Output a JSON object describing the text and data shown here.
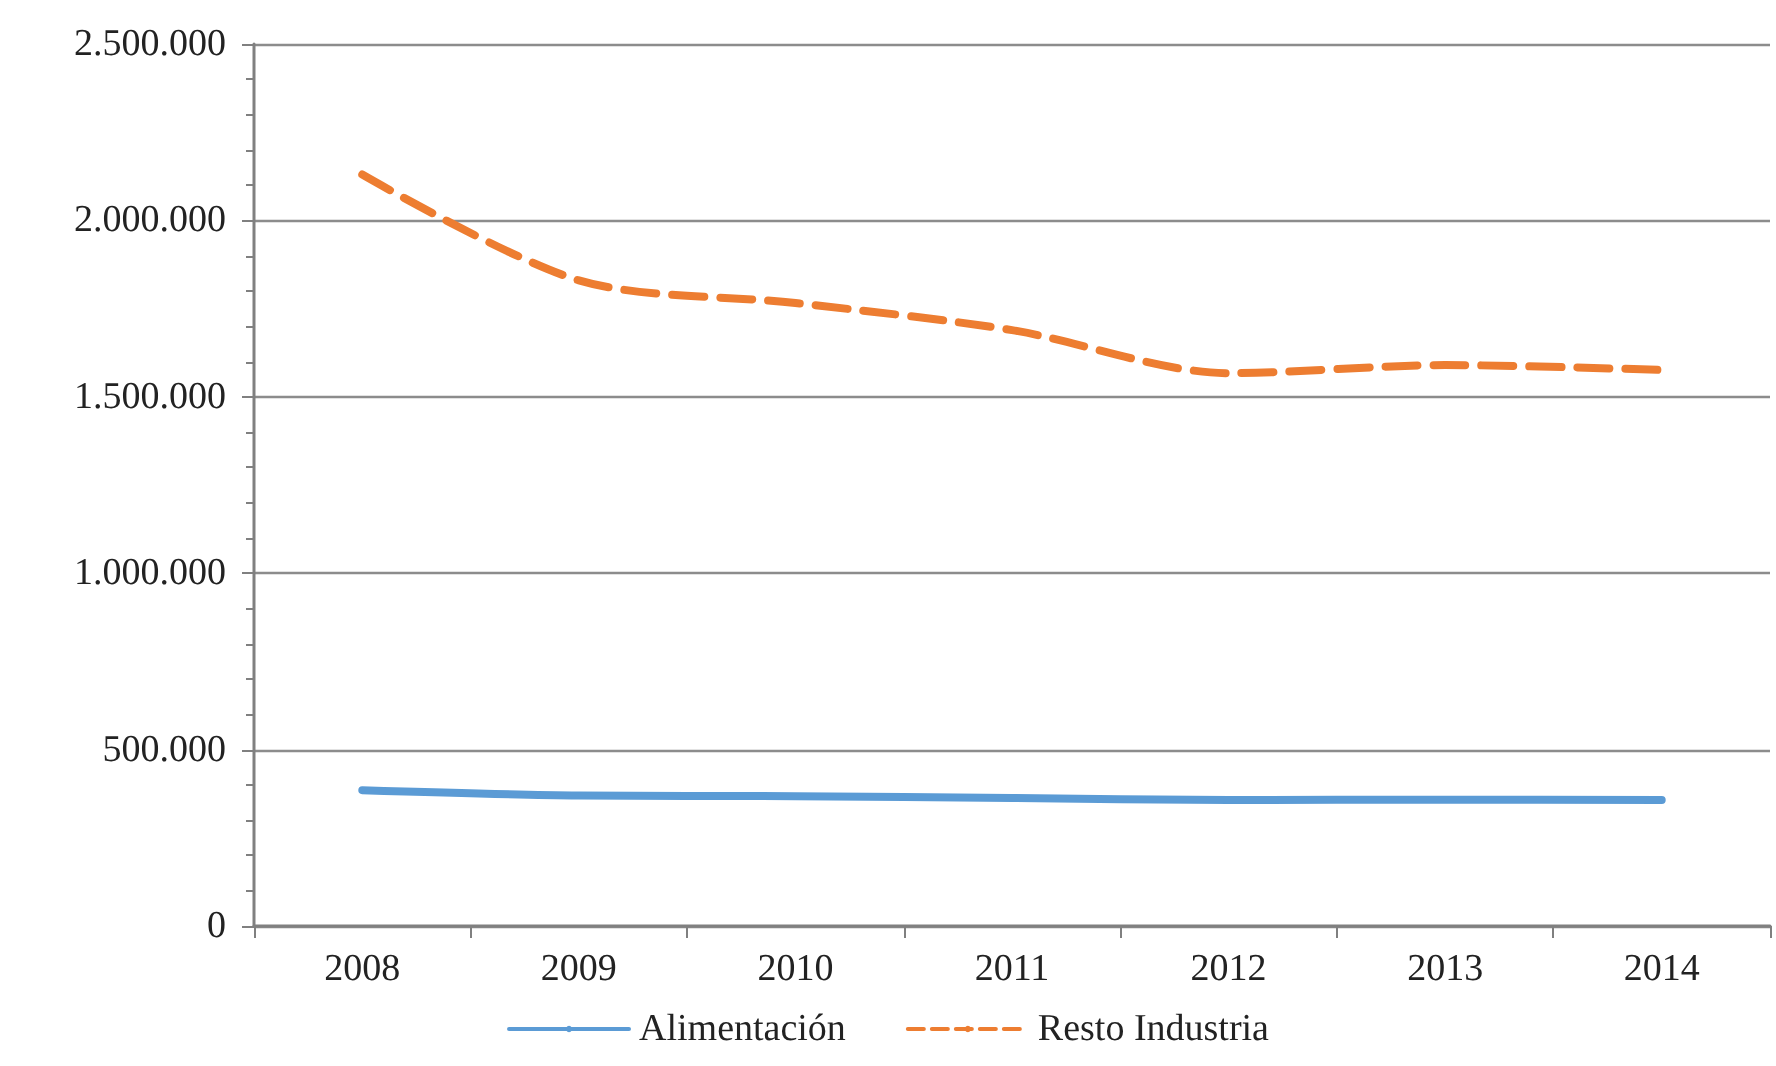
{
  "chart_data": {
    "type": "line",
    "categories": [
      "2008",
      "2009",
      "2010",
      "2011",
      "2012",
      "2013",
      "2014"
    ],
    "series": [
      {
        "name": "Alimentación",
        "color": "#5b9bd5",
        "line_style": "solid",
        "values": [
          385000,
          370000,
          368000,
          363000,
          357000,
          358000,
          357000
        ]
      },
      {
        "name": "Resto Industria",
        "color": "#ed7d31",
        "line_style": "dashed",
        "values": [
          2130000,
          1830000,
          1766000,
          1689000,
          1567000,
          1590000,
          1576000
        ]
      }
    ],
    "ylim": [
      0,
      2500000
    ],
    "yticks": [
      0,
      {
        "value": 500000,
        "label": "500.000"
      },
      {
        "value": 1000000,
        "label": "1.000.000"
      },
      {
        "value": 1500000,
        "label": "1.500.000"
      },
      {
        "value": 2000000,
        "label": "2.000.000"
      },
      {
        "value": 2500000,
        "label": "2.500.000"
      }
    ],
    "grid": "y",
    "legend": "bottom",
    "marker": "none"
  }
}
